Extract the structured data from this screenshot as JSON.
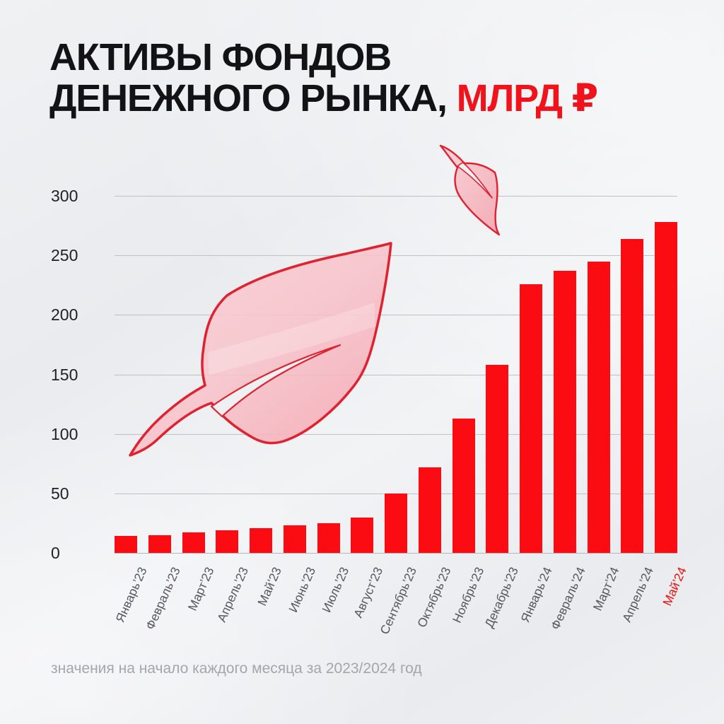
{
  "header": {
    "title_line1": "АКТИВЫ ФОНДОВ",
    "title_line2_black": "ДЕНЕЖНОГО РЫНКА,",
    "title_line2_red": "МЛРД ₽"
  },
  "footnote": "значения на начало каждого месяца за 2023/2024 год",
  "colors": {
    "bar": "#fa0c12",
    "title_accent": "#f0131b",
    "highlight_tick": "#f2100f",
    "gridline": "#bfc0c4",
    "axis_text": "#56575c",
    "ytick_text": "#1f2023",
    "footnote_text": "#a2a6ad",
    "background": "#edeff1",
    "leaf_fill": "#f7bcc3",
    "leaf_stroke": "#e0212f"
  },
  "decorations": {
    "large_leaf": "glass-red-leaf",
    "small_leaf": "glass-red-leaf"
  },
  "chart_data": {
    "type": "bar",
    "title": "АКТИВЫ ФОНДОВ ДЕНЕЖНОГО РЫНКА, МЛРД ₽",
    "categories": [
      "Январь’23",
      "Февраль’23",
      "Март’23",
      "Апрель’23",
      "Май’23",
      "Июнь’23",
      "Июль’23",
      "Август’23",
      "Сентябрь’23",
      "Октябрь’23",
      "Ноябрь’23",
      "Декабрь’23",
      "Январь’24",
      "Февраль’24",
      "Март’24",
      "Апрель’24",
      "Май’24"
    ],
    "values": [
      14,
      15,
      17,
      19,
      21,
      23,
      25,
      30,
      50,
      72,
      113,
      158,
      226,
      237,
      245,
      264,
      278
    ],
    "xlabel": "",
    "ylabel": "",
    "ylim": [
      0,
      300
    ],
    "yticks": [
      0,
      50,
      100,
      150,
      200,
      250,
      300
    ],
    "grid": "horizontal",
    "legend": "none",
    "bar_color": "#fa0c12",
    "highlighted_category": "Май’24",
    "footnote": "значения на начало каждого месяца за 2023/2024 год"
  }
}
